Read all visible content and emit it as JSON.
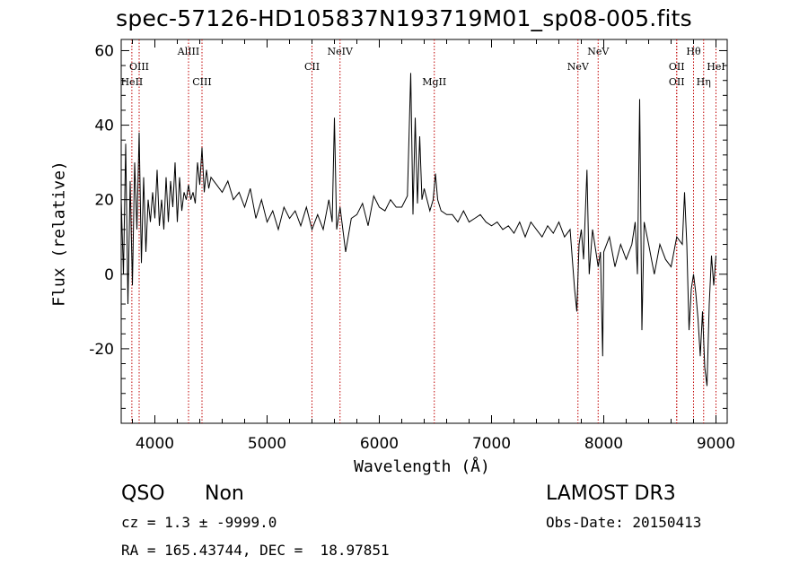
{
  "header": {
    "title": "spec-57126-HD105837N193719M01_sp08-005.fits"
  },
  "axes": {
    "xlabel": "Wavelength (Å)",
    "ylabel": "Flux (relative)"
  },
  "footer": {
    "class_label": "QSO",
    "subclass_label": "Non",
    "cz_line": "cz = 1.3 ± -9999.0",
    "radec_line": "RA = 165.43744, DEC =  18.97851",
    "survey": "LAMOST DR3",
    "obs_date": "Obs-Date: 20150413"
  },
  "style": {
    "line_marker_color": "#c00000",
    "spectrum_color": "#000000"
  },
  "chart_data": {
    "type": "line",
    "title": "spec-57126-HD105837N193719M01_sp08-005.fits",
    "xlabel": "Wavelength (Å)",
    "ylabel": "Flux (relative)",
    "xlim": [
      3700,
      9100
    ],
    "ylim": [
      -40,
      63
    ],
    "x_ticks": [
      4000,
      5000,
      6000,
      7000,
      8000,
      9000
    ],
    "y_ticks": [
      -20,
      0,
      20,
      40,
      60
    ],
    "grid": false,
    "line_markers": [
      {
        "label": "HeII",
        "x": 3795,
        "row": 3
      },
      {
        "label": "OIII",
        "x": 3860,
        "row": 2
      },
      {
        "label": "AlIII",
        "x": 4300,
        "row": 1
      },
      {
        "label": "CIII",
        "x": 4420,
        "row": 3
      },
      {
        "label": "CII",
        "x": 5400,
        "row": 2
      },
      {
        "label": "NeIV",
        "x": 5650,
        "row": 1
      },
      {
        "label": "MgII",
        "x": 6490,
        "row": 3
      },
      {
        "label": "NeV",
        "x": 7770,
        "row": 2
      },
      {
        "label": "NeV",
        "x": 7950,
        "row": 1
      },
      {
        "label": "OII",
        "x": 8650,
        "row": 2
      },
      {
        "label": "OII",
        "x": 8650,
        "row": 3
      },
      {
        "label": "Hθ",
        "x": 8800,
        "row": 1
      },
      {
        "label": "Hη",
        "x": 8890,
        "row": 3
      },
      {
        "label": "HeI",
        "x": 9000,
        "row": 2
      }
    ],
    "series": [
      {
        "x": [
          3700,
          3720,
          3740,
          3760,
          3780,
          3800,
          3820,
          3840,
          3860,
          3880,
          3900,
          3920,
          3940,
          3960,
          3980,
          4000,
          4020,
          4040,
          4060,
          4080,
          4100,
          4120,
          4140,
          4160,
          4180,
          4200,
          4220,
          4240,
          4260,
          4280,
          4300,
          4320,
          4340,
          4360,
          4380,
          4400,
          4420,
          4440,
          4460,
          4480,
          4500,
          4550,
          4600,
          4650,
          4700,
          4750,
          4800,
          4850,
          4900,
          4950,
          5000,
          5050,
          5100,
          5150,
          5200,
          5250,
          5300,
          5350,
          5400,
          5450,
          5500,
          5550,
          5580,
          5600,
          5620,
          5650,
          5700,
          5750,
          5800,
          5850,
          5900,
          5950,
          6000,
          6050,
          6100,
          6150,
          6200,
          6250,
          6280,
          6300,
          6320,
          6340,
          6360,
          6380,
          6400,
          6450,
          6480,
          6500,
          6520,
          6550,
          6600,
          6650,
          6700,
          6750,
          6800,
          6850,
          6900,
          6950,
          7000,
          7050,
          7100,
          7150,
          7200,
          7250,
          7300,
          7350,
          7400,
          7450,
          7500,
          7550,
          7600,
          7650,
          7700,
          7740,
          7760,
          7780,
          7800,
          7820,
          7850,
          7870,
          7900,
          7950,
          7970,
          7990,
          8000,
          8050,
          8100,
          8150,
          8200,
          8250,
          8280,
          8300,
          8320,
          8340,
          8360,
          8400,
          8450,
          8500,
          8550,
          8600,
          8650,
          8700,
          8720,
          8740,
          8760,
          8780,
          8800,
          8820,
          8840,
          8860,
          8880,
          8900,
          8920,
          8940,
          8960,
          8980,
          9000
        ],
        "y": [
          20,
          0,
          35,
          -8,
          25,
          -3,
          30,
          12,
          38,
          3,
          26,
          6,
          20,
          14,
          22,
          15,
          28,
          13,
          20,
          12,
          26,
          14,
          25,
          18,
          30,
          14,
          26,
          17,
          22,
          20,
          24,
          20,
          22,
          19,
          30,
          24,
          34,
          22,
          28,
          23,
          26,
          24,
          22,
          25,
          20,
          22,
          18,
          23,
          15,
          20,
          14,
          17,
          12,
          18,
          15,
          17,
          13,
          18,
          12,
          16,
          12,
          20,
          14,
          42,
          12,
          18,
          6,
          15,
          16,
          19,
          13,
          21,
          18,
          17,
          20,
          18,
          18,
          21,
          54,
          16,
          42,
          19,
          37,
          20,
          23,
          17,
          20,
          27,
          20,
          17,
          16,
          16,
          14,
          17,
          14,
          15,
          16,
          14,
          13,
          14,
          12,
          13,
          11,
          14,
          10,
          14,
          12,
          10,
          13,
          11,
          14,
          10,
          12,
          -4,
          -10,
          8,
          12,
          4,
          28,
          0,
          12,
          2,
          6,
          -22,
          6,
          10,
          2,
          8,
          4,
          8,
          14,
          0,
          47,
          -15,
          14,
          8,
          0,
          8,
          4,
          2,
          10,
          8,
          22,
          8,
          -15,
          -4,
          0,
          -5,
          -12,
          -22,
          -10,
          -25,
          -30,
          -8,
          5,
          -3,
          5
        ]
      }
    ]
  }
}
